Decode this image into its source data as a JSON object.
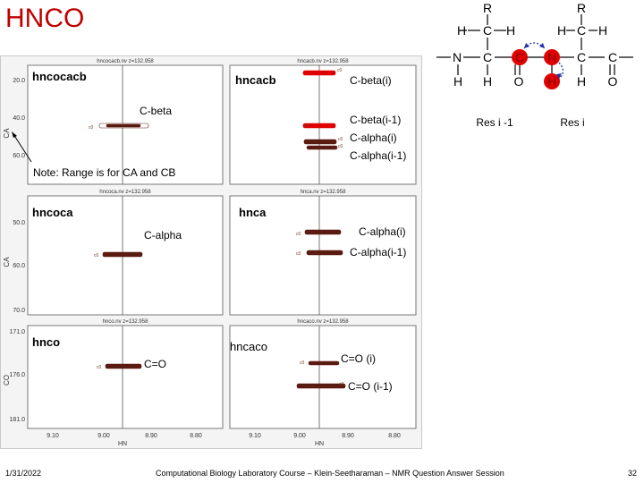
{
  "title": "HNCO",
  "structure": {
    "r_left": "R",
    "r_right": "R",
    "h": "H",
    "c": "C",
    "n": "N",
    "o": "O",
    "res_im1": "Res i -1",
    "res_i": "Res i"
  },
  "panels": [
    {
      "header": "hncocacb.nv z=132.958",
      "name": "hncocacb",
      "peaks": [
        "C-beta"
      ],
      "note": "Note: Range is for CA and CB"
    },
    {
      "header": "hncacb.nv z=132.958",
      "name": "hncacb",
      "peaks": [
        "C-beta(i)",
        "C-beta(i-1)",
        "C-alpha(i)",
        "C-alpha(i-1)"
      ]
    },
    {
      "header": "hncoca.nv z=132.958",
      "name": "hncoca",
      "peaks": [
        "C-alpha"
      ]
    },
    {
      "header": "hnca.nv z=132.958",
      "name": "hnca",
      "peaks": [
        "C-alpha(i)",
        "C-alpha(i-1)"
      ]
    },
    {
      "header": "hnco.nv z=132.958",
      "name": "hnco",
      "peaks": [
        "C=O"
      ]
    },
    {
      "header": "hncaco.nv z=132.958",
      "name": "hncaco",
      "peaks": [
        "C=O (i)",
        "C=O (i-1)"
      ]
    }
  ],
  "axes": {
    "ylabel_ca": "CA",
    "ylabel_co": "CO",
    "xlabel": "HN",
    "ca_ticks_top": [
      "20.0",
      "40.0",
      "60.0"
    ],
    "ca_ticks_mid": [
      "50.0",
      "60.0",
      "70.0"
    ],
    "co_ticks": [
      "171.0",
      "176.0",
      "181.0"
    ],
    "hn_ticks": [
      "9.10",
      "9.00",
      "8.90",
      "8.80"
    ]
  },
  "peak_tag": "c0",
  "colors": {
    "title": "#c00000",
    "highlight": "#e00000",
    "peak": "#5a1b10",
    "arrow": "#2233aa"
  },
  "footer": {
    "date": "1/31/2022",
    "course": "Computational Biology Laboratory Course – Klein-Seetharaman – NMR Question Answer Session",
    "page": "32"
  }
}
